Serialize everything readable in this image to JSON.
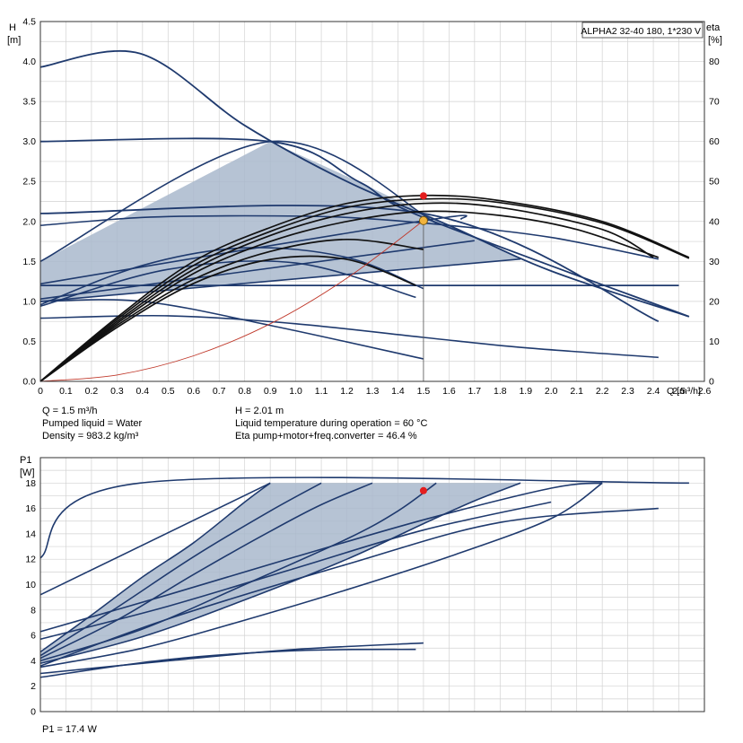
{
  "chart_data": [
    {
      "type": "line",
      "title": "ALPHA2 32-40 180, 1*230 V",
      "xlabel": "Q [m³/h]",
      "ylabel": "H [m]",
      "ylabel_right": "eta [%]",
      "xlim": [
        0,
        2.6
      ],
      "ylim": [
        0,
        4.5
      ],
      "ylim_right": [
        0,
        90
      ],
      "x_ticks": [
        "0",
        "0.1",
        "0.2",
        "0.3",
        "0.4",
        "0.5",
        "0.6",
        "0.7",
        "0.8",
        "0.9",
        "1.0",
        "1.1",
        "1.2",
        "1.3",
        "1.4",
        "1.5",
        "1.6",
        "1.7",
        "1.8",
        "1.9",
        "2.0",
        "2.1",
        "2.2",
        "2.3",
        "2.4",
        "2.5",
        "2.6"
      ],
      "y_ticks": [
        "0.0",
        "0.5",
        "1.0",
        "1.5",
        "2.0",
        "2.5",
        "3.0",
        "3.5",
        "4.0",
        "4.5"
      ],
      "y_ticks_right": [
        "0",
        "10",
        "20",
        "30",
        "40",
        "50",
        "60",
        "70",
        "80"
      ],
      "grid": true,
      "duty_point": {
        "x": 1.5,
        "y": 2.01
      },
      "series": [
        {
          "role": "head-max",
          "x": [
            0,
            0.39,
            0.8,
            1.2,
            1.6,
            2.0,
            2.54
          ],
          "y": [
            3.93,
            4.1,
            3.2,
            2.5,
            1.95,
            1.38,
            0.81
          ]
        },
        {
          "role": "head",
          "x": [
            0,
            0.5,
            1.0,
            1.5,
            1.9,
            2.42
          ],
          "y": [
            0.79,
            0.82,
            0.72,
            0.55,
            0.42,
            0.3
          ]
        },
        {
          "role": "head",
          "x": [
            0,
            0.4,
            0.9,
            1.5
          ],
          "y": [
            1.0,
            1.0,
            0.7,
            0.28
          ]
        },
        {
          "role": "head-setting",
          "x": [
            0,
            0.9,
            1.25,
            1.5,
            2.54
          ],
          "y": [
            3.0,
            3.0,
            2.49,
            2.05,
            0.81
          ]
        },
        {
          "role": "head-setting",
          "x": [
            0,
            1.5,
            2.42
          ],
          "y": [
            2.1,
            2.1,
            0.75
          ]
        },
        {
          "role": "head-setting",
          "x": [
            0,
            2.5
          ],
          "y": [
            1.2,
            1.2
          ]
        },
        {
          "role": "prop-pressure",
          "x": [
            0,
            0.9,
            1.55
          ],
          "y": [
            1.5,
            3.0,
            1.98
          ]
        },
        {
          "role": "prop-pressure",
          "x": [
            0,
            1.5,
            1.65
          ],
          "y": [
            1.22,
            2.01,
            2.03
          ]
        },
        {
          "role": "prop-pressure",
          "x": [
            0,
            1.7
          ],
          "y": [
            1.03,
            1.76
          ]
        },
        {
          "role": "prop-pressure",
          "x": [
            0,
            1.88
          ],
          "y": [
            1.0,
            1.53
          ]
        },
        {
          "role": "head",
          "x": [
            0,
            0.4,
            0.8,
            1.2,
            1.6,
            2.0,
            2.42
          ],
          "y": [
            1.95,
            2.05,
            2.07,
            2.05,
            1.95,
            1.8,
            1.53
          ]
        },
        {
          "role": "head",
          "x": [
            0,
            0.4,
            0.8,
            1.2,
            1.5
          ],
          "y": [
            0.96,
            1.45,
            1.67,
            1.55,
            1.16
          ]
        },
        {
          "role": "head",
          "x": [
            0,
            0.5,
            1.0,
            1.47
          ],
          "y": [
            0.94,
            1.4,
            1.48,
            1.05
          ]
        },
        {
          "role": "eta",
          "axis": "right",
          "x": [
            0,
            0.3,
            0.6,
            0.9,
            1.2,
            1.5,
            1.8,
            2.2,
            2.54
          ],
          "y": [
            0,
            16,
            30,
            38.5,
            44.5,
            46.5,
            45.2,
            40,
            31
          ]
        },
        {
          "role": "eta",
          "axis": "right",
          "x": [
            0,
            0.3,
            0.6,
            0.9,
            1.2,
            1.5,
            1.8,
            2.2,
            2.54
          ],
          "y": [
            0,
            15.5,
            29,
            37.5,
            43.5,
            45.6,
            44.7,
            39.6,
            30.8
          ]
        },
        {
          "role": "eta",
          "axis": "right",
          "x": [
            0,
            0.3,
            0.6,
            0.9,
            1.2,
            1.5,
            1.8,
            2.2,
            2.4
          ],
          "y": [
            0,
            15,
            28,
            36.5,
            42,
            44.5,
            43.5,
            38,
            31
          ]
        },
        {
          "role": "eta",
          "axis": "right",
          "x": [
            0,
            0.3,
            0.6,
            0.9,
            1.2,
            1.5,
            1.8,
            2.1,
            2.42
          ],
          "y": [
            0,
            14.5,
            27,
            35,
            40,
            42.5,
            41.5,
            38,
            31
          ]
        },
        {
          "role": "eta",
          "axis": "right",
          "x": [
            0,
            0.3,
            0.6,
            0.9,
            1.2,
            1.5
          ],
          "y": [
            0,
            14,
            25.5,
            32.5,
            35.5,
            33
          ]
        },
        {
          "role": "eta",
          "axis": "right",
          "x": [
            0,
            0.3,
            0.6,
            0.9,
            1.2,
            1.47
          ],
          "y": [
            0,
            13.5,
            24.5,
            30.5,
            30.5,
            24
          ]
        },
        {
          "role": "system",
          "x": [
            0,
            0.3,
            0.6,
            0.9,
            1.2,
            1.5
          ],
          "y": [
            0,
            0.08,
            0.32,
            0.72,
            1.29,
            2.01
          ]
        }
      ]
    },
    {
      "type": "line",
      "title": "",
      "xlabel": "",
      "ylabel": "P1 [W]",
      "xlim": [
        0,
        2.6
      ],
      "ylim": [
        0,
        20
      ],
      "y_ticks": [
        "0",
        "2",
        "4",
        "6",
        "8",
        "10",
        "12",
        "14",
        "16",
        "18"
      ],
      "grid": true,
      "duty_point": {
        "x": 1.5,
        "y": 17.4
      },
      "series": [
        {
          "role": "power",
          "x": [
            0,
            0.39,
            2.54
          ],
          "y": [
            12.1,
            18,
            18
          ]
        },
        {
          "role": "power",
          "x": [
            0,
            0.9
          ],
          "y": [
            9.2,
            18
          ]
        },
        {
          "role": "power",
          "x": [
            0,
            0.5,
            1.2,
            1.8,
            2.42
          ],
          "y": [
            3.6,
            7.3,
            11.6,
            14.9,
            16
          ]
        },
        {
          "role": "power",
          "x": [
            0,
            0.5,
            1.0,
            1.5
          ],
          "y": [
            3.0,
            4.0,
            4.9,
            5.4
          ]
        },
        {
          "role": "power",
          "x": [
            0,
            0.5,
            1.0,
            1.47
          ],
          "y": [
            2.7,
            4.1,
            4.8,
            4.9
          ]
        },
        {
          "role": "power",
          "x": [
            0,
            0.4,
            0.8,
            1.2,
            1.6,
            2.0,
            2.2
          ],
          "y": [
            3.5,
            5.0,
            7.2,
            9.6,
            12.2,
            15.2,
            18
          ]
        },
        {
          "role": "power",
          "x": [
            0,
            0.4,
            0.8,
            1.2,
            1.5,
            1.7,
            1.88
          ],
          "y": [
            3.8,
            5.9,
            8.8,
            12.0,
            14.8,
            16.6,
            18
          ]
        },
        {
          "role": "power",
          "x": [
            0,
            0.4,
            0.8,
            1.2,
            1.4,
            1.55
          ],
          "y": [
            4.0,
            6.5,
            10.0,
            13.6,
            15.8,
            18
          ]
        },
        {
          "role": "power",
          "x": [
            0,
            0.3,
            0.6,
            0.9,
            1.1,
            1.3
          ],
          "y": [
            4.2,
            7.2,
            10.8,
            14.2,
            16.3,
            18
          ]
        },
        {
          "role": "power",
          "x": [
            0,
            0.3,
            0.6,
            0.9,
            1.1
          ],
          "y": [
            4.4,
            8.2,
            12.2,
            15.8,
            18
          ]
        },
        {
          "role": "power",
          "x": [
            0,
            0.2,
            0.4,
            0.6,
            0.8,
            0.9
          ],
          "y": [
            4.7,
            7.6,
            10.6,
            13.3,
            16.5,
            18
          ]
        },
        {
          "role": "power",
          "x": [
            0,
            0.5,
            1.0,
            1.5,
            2.0
          ],
          "y": [
            5.7,
            8.3,
            11.3,
            14.3,
            16.5
          ]
        },
        {
          "role": "power",
          "x": [
            0,
            0.5,
            1.0,
            1.5,
            2.0,
            2.2
          ],
          "y": [
            6.3,
            9.2,
            12.2,
            15.1,
            17.6,
            18
          ]
        }
      ]
    }
  ],
  "info_top": {
    "q": "Q = 1.5 m³/h",
    "liquid": "Pumped liquid = Water",
    "density": "Density = 983.2 kg/m³",
    "h": "H = 2.01 m",
    "temp": "Liquid temperature during operation = 60 °C",
    "eta": "Eta pump+motor+freq.converter = 46.4 %"
  },
  "info_bottom": {
    "p1": "P1 = 17.4 W"
  },
  "colors": {
    "curve": "#1f3a6e",
    "eta": "#111111",
    "system": "#c0392b",
    "fill": "#a9b8cc",
    "grid": "#d2d2d2",
    "duty_red": "#e41e1e",
    "duty_orange": "#f2b43c"
  }
}
